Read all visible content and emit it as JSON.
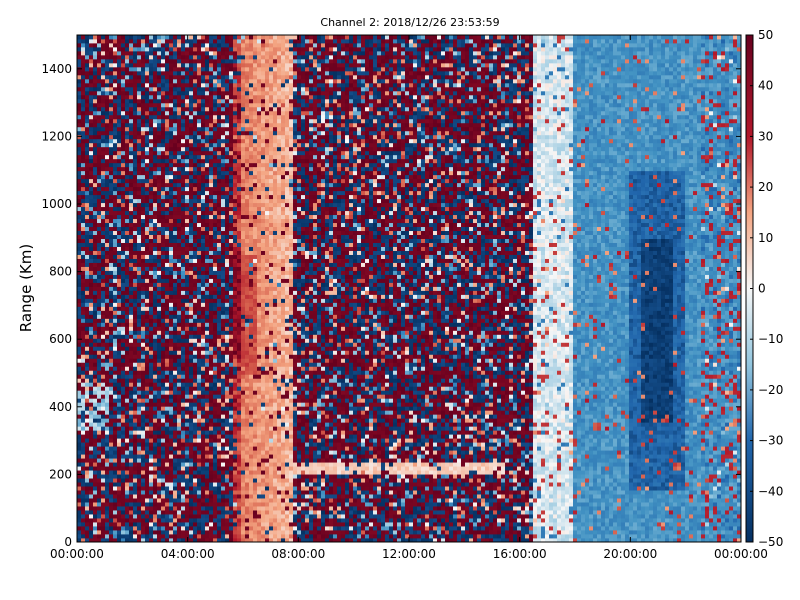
{
  "chart_data": {
    "type": "heatmap",
    "title": "Channel 2: 2018/12/26 23:53:59",
    "xlabel": "",
    "ylabel": "Range (Km)",
    "x_ticks": [
      "00:00:00",
      "04:00:00",
      "08:00:00",
      "12:00:00",
      "16:00:00",
      "20:00:00",
      "00:00:00"
    ],
    "x_range_hours": [
      0,
      24
    ],
    "y_ticks": [
      "0",
      "200",
      "400",
      "600",
      "800",
      "1000",
      "1200",
      "1400"
    ],
    "y_range": [
      0,
      1500
    ],
    "colorbar": {
      "min": -50,
      "max": 50,
      "ticks": [
        "50",
        "40",
        "30",
        "20",
        "10",
        "0",
        "−10",
        "−20",
        "−30",
        "−40",
        "−50"
      ],
      "colormap": "RdBu_r"
    },
    "colors": {
      "high": "#67001f",
      "mid_high": "#d6604d",
      "mid": "#f7f7f7",
      "mid_low": "#4393c3",
      "low": "#053061"
    },
    "regions": [
      {
        "hours": [
          0,
          5.6
        ],
        "pattern": "noise"
      },
      {
        "hours": [
          5.6,
          6.0
        ],
        "pattern": "strong positive near 550-850 km"
      },
      {
        "hours": [
          6.0,
          7.8
        ],
        "pattern": "weak positive"
      },
      {
        "hours": [
          7.8,
          16.5
        ],
        "pattern": "noise"
      },
      {
        "hours": [
          16.5,
          18.0
        ],
        "pattern": "near zero"
      },
      {
        "hours": [
          18.0,
          24.0
        ],
        "pattern": "negative, strongest near 21 h, 450-850 km"
      }
    ]
  }
}
